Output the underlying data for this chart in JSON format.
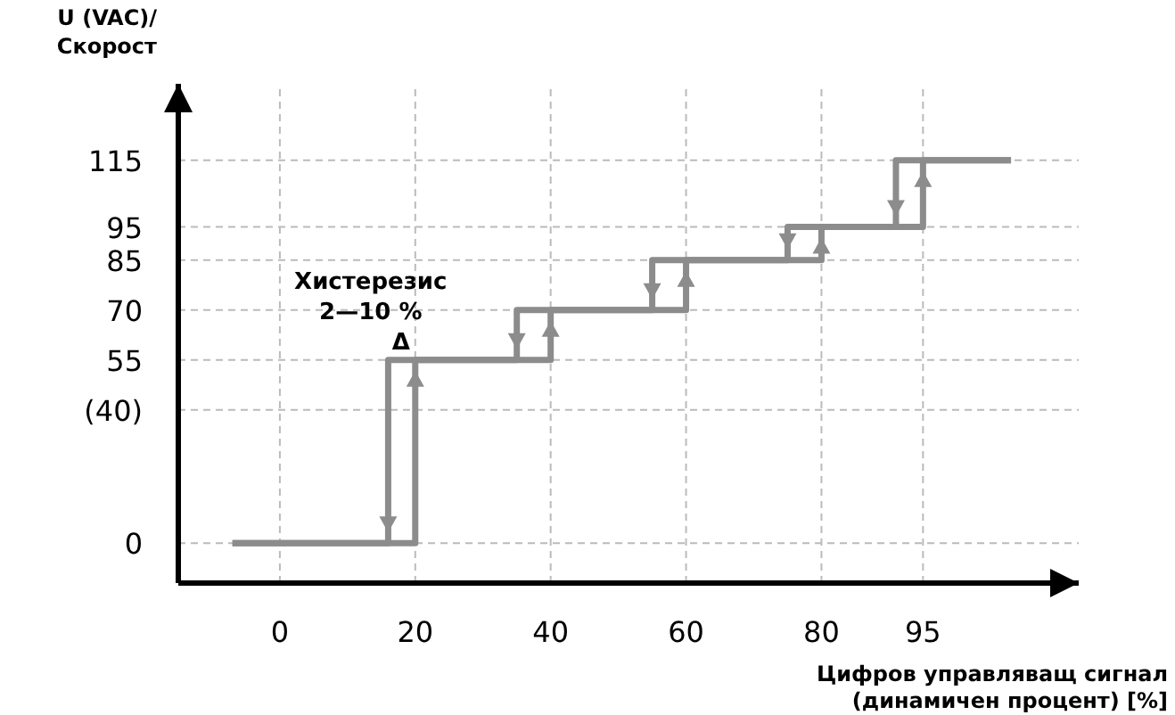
{
  "chart_data": {
    "type": "line",
    "ylabel": "U (VAC)/\nСкорост",
    "xlabel": "Цифров управляващ сигнал\n(динамичен процент) [%]",
    "xlim": [
      -15,
      118
    ],
    "ylim": [
      -12,
      138
    ],
    "xticks": [
      0,
      20,
      40,
      60,
      80,
      95
    ],
    "yticks": [
      0,
      {
        "value": 40,
        "label": "(40)"
      },
      55,
      70,
      85,
      95,
      115
    ],
    "grid": true,
    "line_style": "solid",
    "series": [
      {
        "color": "#8c8c8c",
        "x": [
          -7,
          20,
          20,
          40,
          40,
          60,
          60,
          80,
          80,
          95,
          95,
          108
        ],
        "values": [
          0,
          0,
          55,
          55,
          70,
          70,
          85,
          85,
          95,
          95,
          115,
          115
        ]
      },
      {
        "color": "#8c8c8c",
        "x": [
          108,
          91,
          91,
          75,
          75,
          55,
          55,
          35,
          35,
          16,
          16,
          -7
        ],
        "values": [
          115,
          115,
          95,
          95,
          85,
          85,
          70,
          70,
          55,
          55,
          0,
          0
        ]
      }
    ],
    "annotations": [
      "Хистерезис\n2—10 %",
      "Δ"
    ]
  }
}
